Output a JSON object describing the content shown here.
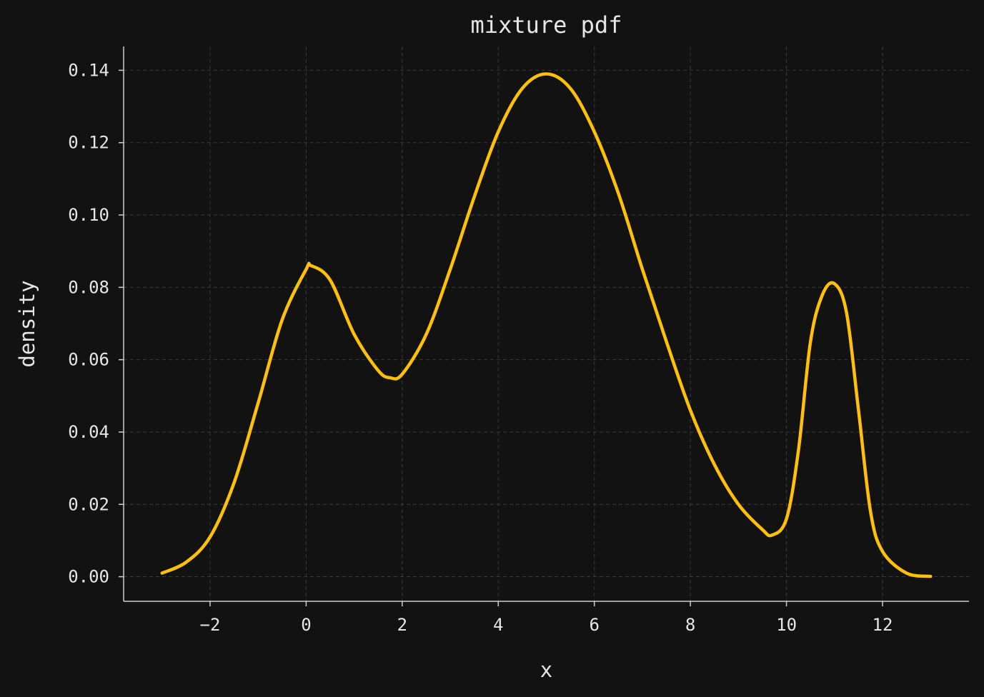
{
  "chart_data": {
    "type": "line",
    "title": "mixture pdf",
    "xlabel": "x",
    "ylabel": "density",
    "xlim": [
      -3.8,
      13.8
    ],
    "ylim": [
      -0.0068,
      0.1466
    ],
    "grid": true,
    "xticks": [
      -2,
      0,
      2,
      4,
      6,
      8,
      10,
      12
    ],
    "xtick_labels": [
      "−2",
      "0",
      "2",
      "4",
      "6",
      "8",
      "10",
      "12"
    ],
    "yticks": [
      0,
      0.02,
      0.04,
      0.06,
      0.08,
      0.1,
      0.12,
      0.14
    ],
    "ytick_labels": [
      "0.00",
      "0.02",
      "0.04",
      "0.06",
      "0.08",
      "0.10",
      "0.12",
      "0.14"
    ],
    "series": [
      {
        "color": "#ffc107",
        "x": [
          -3.0,
          -2.5,
          -2.0,
          -1.5,
          -1.0,
          -0.5,
          0.0,
          0.1,
          0.5,
          1.0,
          1.5,
          1.75,
          2.0,
          2.5,
          3.0,
          3.5,
          4.0,
          4.5,
          5.0,
          5.5,
          6.0,
          6.5,
          7.0,
          7.5,
          8.0,
          8.5,
          9.0,
          9.5,
          9.7,
          10.0,
          10.25,
          10.5,
          10.75,
          11.0,
          11.25,
          11.5,
          11.75,
          12.0,
          12.5,
          13.0
        ],
        "y": [
          0.001,
          0.004,
          0.011,
          0.026,
          0.048,
          0.071,
          0.085,
          0.086,
          0.082,
          0.067,
          0.057,
          0.055,
          0.056,
          0.067,
          0.085,
          0.105,
          0.123,
          0.135,
          0.139,
          0.135,
          0.123,
          0.106,
          0.085,
          0.065,
          0.046,
          0.031,
          0.02,
          0.013,
          0.0115,
          0.016,
          0.035,
          0.065,
          0.078,
          0.081,
          0.073,
          0.046,
          0.018,
          0.007,
          0.001,
          0.0001
        ]
      }
    ]
  }
}
